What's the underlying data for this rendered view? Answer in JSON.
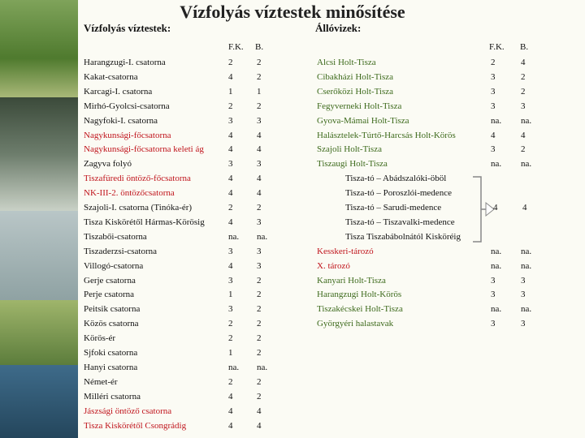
{
  "header": {
    "title": "Vízfolyás víztestek minősítése"
  },
  "left_table": {
    "heading": "Vízfolyás víztestek:",
    "columns": [
      "F.K.",
      "B."
    ],
    "rows": [
      [
        "Harangzugi-I. csatorna",
        2,
        2
      ],
      [
        "Kakat-csatorna",
        4,
        2
      ],
      [
        "Karcagi-I. csatorna",
        1,
        1
      ],
      [
        "Mirhó-Gyolcsi-csatorna",
        2,
        2
      ],
      [
        "Nagyfoki-I. csatorna",
        3,
        3
      ],
      [
        "Nagykunsági-főcsatorna",
        4,
        4
      ],
      [
        "Nagykunsági-főcsatorna keleti ág",
        4,
        4
      ],
      [
        "Zagyva folyó",
        3,
        3
      ],
      [
        "Tiszafüredi öntöző-főcsatorna",
        4,
        4
      ],
      [
        "NK-III-2. öntözőcsatorna",
        4,
        4
      ],
      [
        "Szajoli-I. csatorna (Tinóka-ér)",
        2,
        2
      ],
      [
        "Tisza Kiskörétől Hármas-Körösig",
        4,
        3
      ],
      [
        "Tiszabői-csatorna",
        "na.",
        "na."
      ],
      [
        "Tiszaderzsi-csatorna",
        3,
        3
      ],
      [
        "Villogó-csatorna",
        4,
        3
      ],
      [
        "Gerje csatorna",
        3,
        2
      ],
      [
        "Perje csatorna",
        1,
        2
      ],
      [
        "Peitsik csatorna",
        3,
        2
      ],
      [
        "Közös csatorna",
        2,
        2
      ],
      [
        "Körös-ér",
        2,
        2
      ],
      [
        "Sjfoki csatorna",
        1,
        2
      ],
      [
        "Hanyi csatorna",
        "na.",
        "na."
      ],
      [
        "Német-ér",
        2,
        2
      ],
      [
        "Milléri csatorna",
        4,
        2
      ],
      [
        "Jászsági öntöző csatorna",
        4,
        4
      ],
      [
        "Tisza Kiskörétől Csongrádig",
        4,
        4
      ]
    ],
    "highlighted_rows": [
      5,
      6,
      8,
      9,
      24,
      25
    ]
  },
  "right_table": {
    "heading": "Állóvizek:",
    "columns": [
      "F.K.",
      "B."
    ],
    "rows_before": [
      [
        "Alcsi Holt-Tisza",
        2,
        4
      ],
      [
        "Cibakházi Holt-Tisza",
        3,
        2
      ],
      [
        "Cserőközi Holt-Tisza",
        3,
        2
      ],
      [
        "Fegyverneki Holt-Tisza",
        3,
        3
      ],
      [
        "Gyova-Mámai Holt-Tisza",
        "na.",
        "na."
      ],
      [
        "Halásztelek-Túrtő-Harcsás Holt-Körös",
        4,
        4
      ],
      [
        "Szajoli Holt-Tisza",
        3,
        2
      ],
      [
        "Tiszaugi Holt-Tisza",
        "na.",
        "na."
      ]
    ],
    "group": {
      "items": [
        "Tisza-tó – Abádszalóki-öböl",
        "Tisza-tó – Poroszlói-medence",
        "Tisza-tó – Sarudi-medence",
        "Tisza-tó – Tiszavalki-medence",
        "Tisza Tiszabábolnától Kisköréig"
      ],
      "fk": 4,
      "b": 4
    },
    "rows_after": [
      [
        "Kesskeri-tározó",
        "na.",
        "na."
      ],
      [
        "X. tározó",
        "na.",
        "na."
      ],
      [
        "Kanyari Holt-Tisza",
        3,
        3
      ],
      [
        "Harangzugi Holt-Körös",
        3,
        3
      ],
      [
        "Tiszakécskei Holt-Tisza",
        "na.",
        "na."
      ],
      [
        "Györgyéri halastavak",
        3,
        3
      ]
    ],
    "highlighted_after": [
      0,
      1
    ]
  }
}
